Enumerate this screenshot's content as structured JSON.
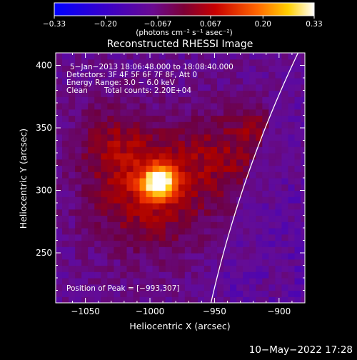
{
  "chart_data": {
    "type": "heatmap",
    "title": "Reconstructed RHESSI Image",
    "xlabel": "Heliocentric X (arcsec)",
    "ylabel": "Heliocentric Y (arcsec)",
    "xlim": [
      -1073,
      -880
    ],
    "ylim": [
      210,
      410
    ],
    "x_ticks": [
      -1050,
      -1000,
      -950,
      -900
    ],
    "x_tick_labels": [
      "−1050",
      "−1000",
      "−950",
      "−900"
    ],
    "y_ticks": [
      250,
      300,
      350,
      400
    ],
    "y_tick_labels": [
      "250",
      "300",
      "350",
      "400"
    ],
    "colorbar": {
      "range": [
        -0.33,
        0.33
      ],
      "ticks": [
        -0.33,
        -0.2,
        -0.067,
        0.067,
        0.2,
        0.33
      ],
      "tick_labels": [
        "−0.33",
        "−0.20",
        "−0.067",
        "0.067",
        "0.20",
        "0.33"
      ],
      "unit_text": "(photons cm⁻² s⁻¹ asec⁻²)"
    },
    "annotations": {
      "time": "5−Jan−2013 18:06:48.000 to 18:08:40.000",
      "detectors": "Detectors: 3F 4F 5F 6F 7F 8F, Att 0",
      "energy": "Energy Range: 3.0 − 6.0 keV",
      "method": "Clean",
      "counts": "Total counts: 2.20E+04",
      "peak": "Position of Peak = [−993,307]"
    },
    "peak": [
      -993,
      307
    ],
    "sources": [
      {
        "x": -993,
        "y": 307,
        "amp": 0.33,
        "sigma": 9
      },
      {
        "x": -1000,
        "y": 300,
        "amp": 0.16,
        "sigma": 32
      },
      {
        "x": -940,
        "y": 330,
        "amp": 0.1,
        "sigma": 26
      },
      {
        "x": -1030,
        "y": 340,
        "amp": 0.08,
        "sigma": 20
      },
      {
        "x": -918,
        "y": 352,
        "amp": 0.07,
        "sigma": 9
      }
    ],
    "limb": {
      "radius_arcsec": 975.6,
      "y_center": 0
    }
  },
  "footer": {
    "timestamp": "10−May−2022 17:28"
  }
}
